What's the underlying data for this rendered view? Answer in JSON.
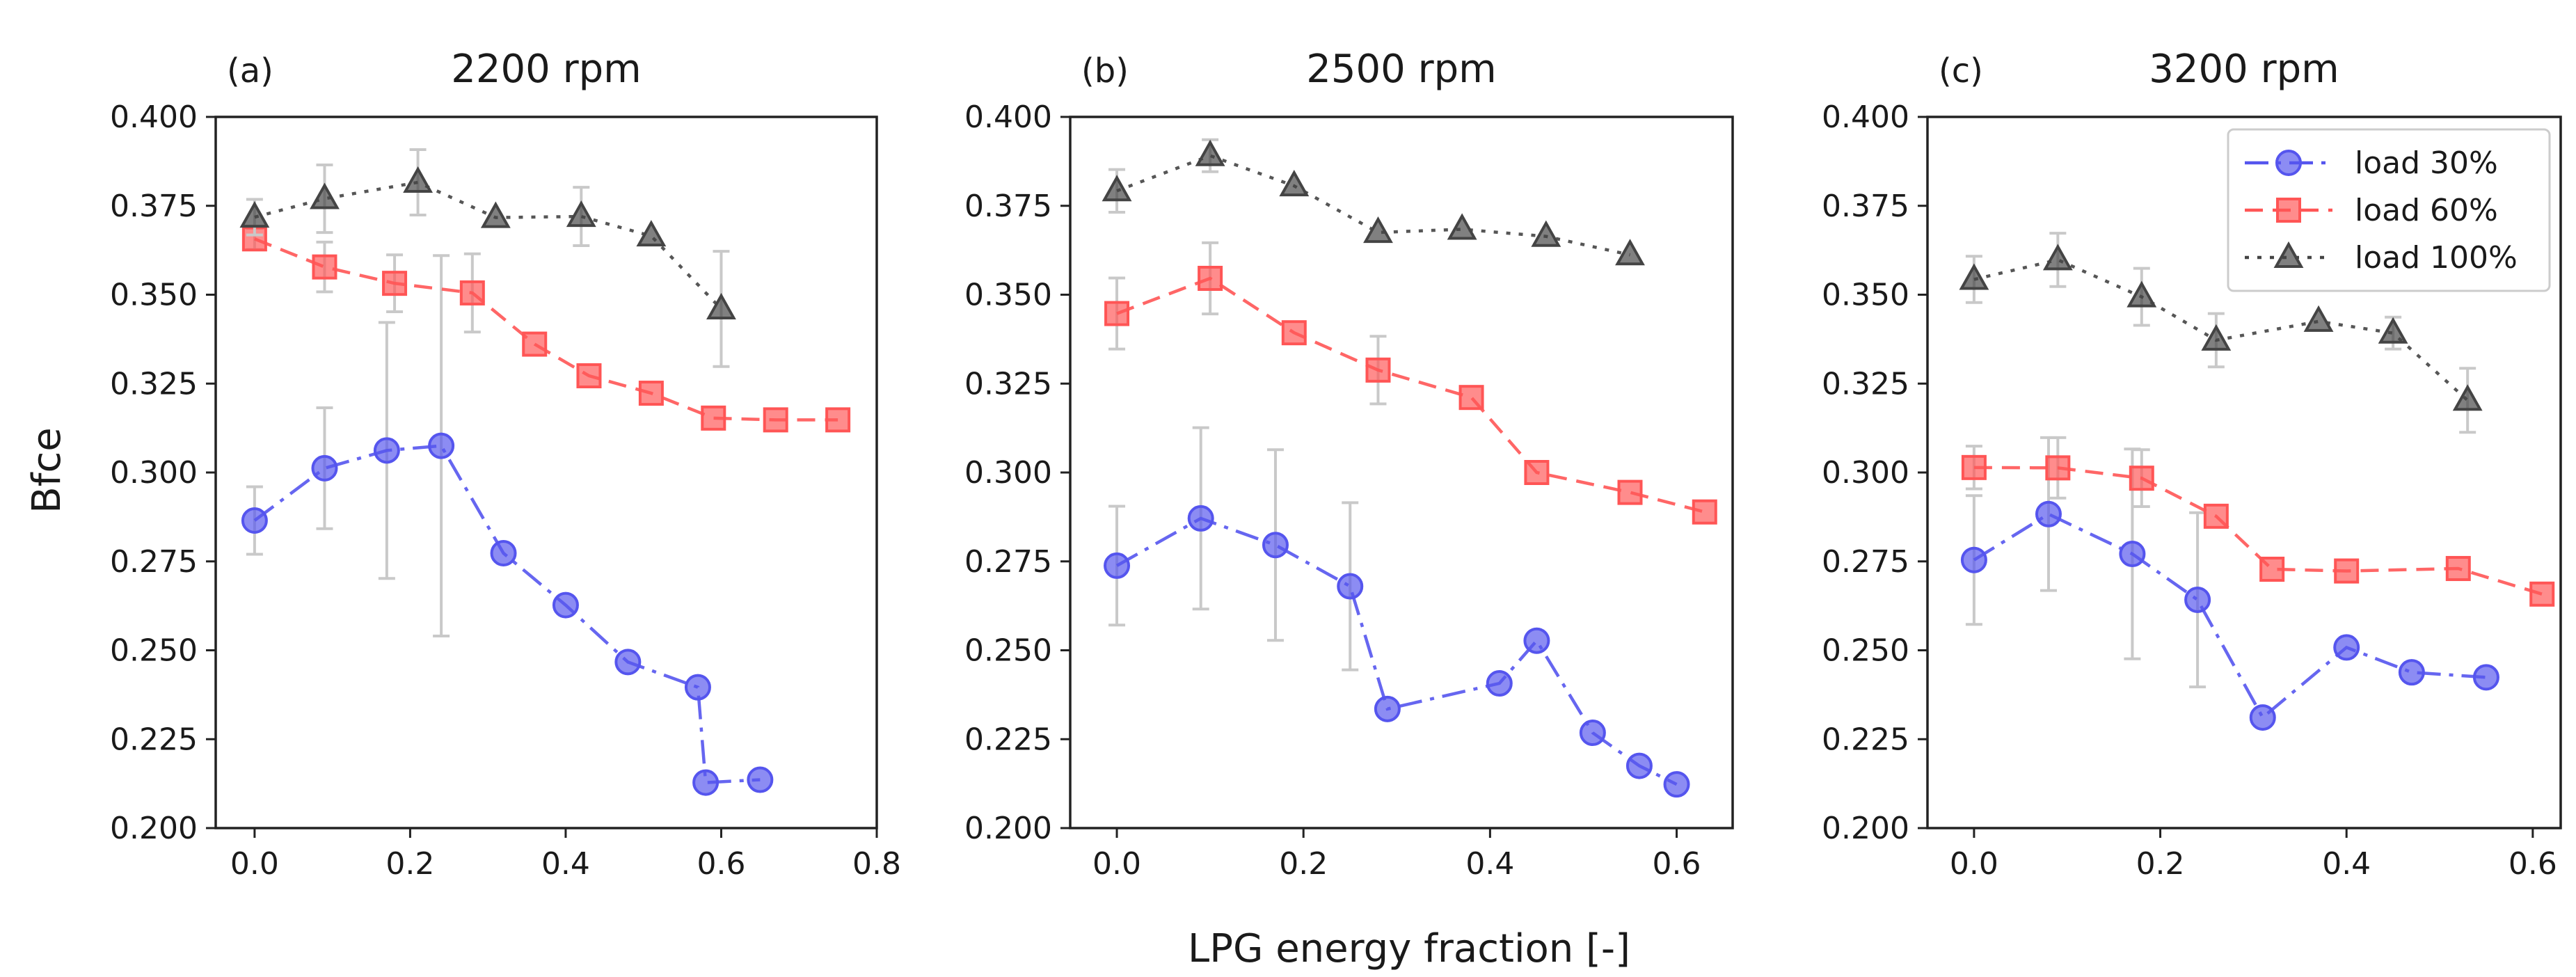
{
  "figure": {
    "ylabel": "Bfce",
    "xlabel": "LPG energy fraction [-]"
  },
  "chart_data": [
    {
      "type": "line",
      "panel_label": "(a)",
      "title": "2200 rpm",
      "xlabel": "LPG energy fraction [-]",
      "ylabel": "Bfce",
      "xlim": [
        -0.05,
        0.8
      ],
      "ylim": [
        0.2,
        0.4
      ],
      "xticks": [
        0.0,
        0.2,
        0.4,
        0.6,
        0.8
      ],
      "xtick_labels": [
        "0.0",
        "0.2",
        "0.4",
        "0.6",
        "0.8"
      ],
      "yticks": [
        0.2,
        0.225,
        0.25,
        0.275,
        0.3,
        0.325,
        0.35,
        0.375,
        0.4
      ],
      "ytick_labels": [
        "0.200",
        "0.225",
        "0.250",
        "0.275",
        "0.300",
        "0.325",
        "0.350",
        "0.375",
        "0.400"
      ],
      "series": [
        {
          "name": "load 30%",
          "color": "#5555ee",
          "marker": "circle",
          "dash": "dashdot",
          "x": [
            0.0,
            0.09,
            0.17,
            0.24,
            0.32,
            0.4,
            0.48,
            0.57,
            0.58,
            0.65
          ],
          "y": [
            0.2865,
            0.3012,
            0.3062,
            0.3075,
            0.2773,
            0.2627,
            0.2467,
            0.2396,
            0.2128,
            0.2136
          ],
          "err": [
            0.0095,
            0.017,
            0.036,
            0.0535,
            null,
            null,
            null,
            null,
            null,
            null
          ]
        },
        {
          "name": "load 60%",
          "color": "#ff5555",
          "marker": "square",
          "dash": "dashed",
          "x": [
            0.0,
            0.09,
            0.18,
            0.28,
            0.36,
            0.43,
            0.51,
            0.59,
            0.67,
            0.75
          ],
          "y": [
            0.3657,
            0.3578,
            0.3532,
            0.3505,
            0.3361,
            0.3272,
            0.3223,
            0.3153,
            0.3148,
            0.3148
          ],
          "err": [
            0.003,
            0.007,
            0.008,
            0.011,
            null,
            null,
            null,
            null,
            null,
            null
          ]
        },
        {
          "name": "load 100%",
          "color": "#444444",
          "marker": "triangle",
          "dash": "dotted",
          "x": [
            0.0,
            0.09,
            0.21,
            0.31,
            0.42,
            0.51,
            0.6
          ],
          "y": [
            0.3718,
            0.377,
            0.3816,
            0.3717,
            0.372,
            0.3665,
            0.346
          ],
          "err": [
            0.005,
            0.0095,
            0.0092,
            null,
            0.0082,
            null,
            0.0162
          ]
        }
      ]
    },
    {
      "type": "line",
      "panel_label": "(b)",
      "title": "2500 rpm",
      "xlim": [
        -0.05,
        0.66
      ],
      "ylim": [
        0.2,
        0.4
      ],
      "xticks": [
        0.0,
        0.2,
        0.4,
        0.6
      ],
      "xtick_labels": [
        "0.0",
        "0.2",
        "0.4",
        "0.6"
      ],
      "yticks": [
        0.2,
        0.225,
        0.25,
        0.275,
        0.3,
        0.325,
        0.35,
        0.375,
        0.4
      ],
      "ytick_labels": [
        "0.200",
        "0.225",
        "0.250",
        "0.275",
        "0.300",
        "0.325",
        "0.350",
        "0.375",
        "0.400"
      ],
      "series": [
        {
          "name": "load 30%",
          "color": "#5555ee",
          "marker": "circle",
          "dash": "dashdot",
          "x": [
            0.0,
            0.09,
            0.17,
            0.25,
            0.29,
            0.41,
            0.45,
            0.51,
            0.56,
            0.6
          ],
          "y": [
            0.2738,
            0.2871,
            0.2796,
            0.268,
            0.2335,
            0.2407,
            0.2527,
            0.2268,
            0.2175,
            0.2123
          ],
          "err": [
            0.0167,
            0.0255,
            0.0268,
            0.0235,
            null,
            null,
            null,
            null,
            null,
            null
          ]
        },
        {
          "name": "load 60%",
          "color": "#ff5555",
          "marker": "square",
          "dash": "dashed",
          "x": [
            0.0,
            0.1,
            0.19,
            0.28,
            0.38,
            0.45,
            0.55,
            0.63
          ],
          "y": [
            0.3447,
            0.3546,
            0.3393,
            0.3288,
            0.3211,
            0.3,
            0.2944,
            0.2889
          ],
          "err": [
            0.01,
            0.01,
            null,
            0.0095,
            null,
            null,
            null,
            null
          ]
        },
        {
          "name": "load 100%",
          "color": "#444444",
          "marker": "triangle",
          "dash": "dotted",
          "x": [
            0.0,
            0.1,
            0.19,
            0.28,
            0.37,
            0.46,
            0.55
          ],
          "y": [
            0.3792,
            0.3891,
            0.3806,
            0.3675,
            0.3684,
            0.3664,
            0.3612
          ],
          "err": [
            0.006,
            0.0045,
            null,
            null,
            null,
            null,
            null
          ]
        }
      ]
    },
    {
      "type": "line",
      "panel_label": "(c)",
      "title": "3200 rpm",
      "xlim": [
        -0.05,
        0.63
      ],
      "ylim": [
        0.2,
        0.4
      ],
      "xticks": [
        0.0,
        0.2,
        0.4,
        0.6
      ],
      "xtick_labels": [
        "0.0",
        "0.2",
        "0.4",
        "0.6"
      ],
      "yticks": [
        0.2,
        0.225,
        0.25,
        0.275,
        0.3,
        0.325,
        0.35,
        0.375,
        0.4
      ],
      "ytick_labels": [
        "0.200",
        "0.225",
        "0.250",
        "0.275",
        "0.300",
        "0.325",
        "0.350",
        "0.375",
        "0.400"
      ],
      "legend": {
        "placement": "top-right",
        "entries": [
          "load 30%",
          "load 60%",
          "load 100%"
        ]
      },
      "series": [
        {
          "name": "load 30%",
          "color": "#5555ee",
          "marker": "circle",
          "dash": "dashdot",
          "x": [
            0.0,
            0.08,
            0.17,
            0.24,
            0.31,
            0.4,
            0.47,
            0.55
          ],
          "y": [
            0.2754,
            0.2883,
            0.2771,
            0.2642,
            0.2311,
            0.2508,
            0.2438,
            0.2424
          ],
          "err": [
            0.0181,
            0.0215,
            0.0295,
            0.0245,
            null,
            null,
            null,
            null
          ]
        },
        {
          "name": "load 60%",
          "color": "#ff5555",
          "marker": "square",
          "dash": "dashed",
          "x": [
            0.0,
            0.09,
            0.18,
            0.26,
            0.32,
            0.4,
            0.52,
            0.61
          ],
          "y": [
            0.3014,
            0.3013,
            0.2984,
            0.2877,
            0.2728,
            0.2723,
            0.273,
            0.2658
          ],
          "err": [
            0.006,
            0.0085,
            0.008,
            null,
            null,
            null,
            null,
            null
          ]
        },
        {
          "name": "load 100%",
          "color": "#444444",
          "marker": "triangle",
          "dash": "dotted",
          "x": [
            0.0,
            0.09,
            0.18,
            0.26,
            0.37,
            0.45,
            0.53
          ],
          "y": [
            0.3543,
            0.3598,
            0.3494,
            0.3372,
            0.3425,
            0.3392,
            0.3203
          ],
          "err": [
            0.0065,
            0.0075,
            0.008,
            0.0075,
            null,
            0.0045,
            0.009
          ]
        }
      ]
    }
  ]
}
